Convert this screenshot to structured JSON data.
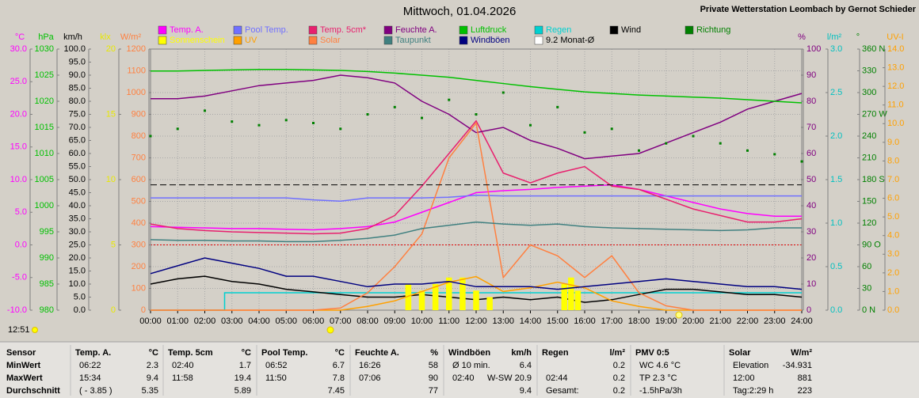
{
  "chart_data": {
    "type": "line",
    "title": "Mittwoch, 01.04.2026",
    "subtitle": "Private Wetterstation Leombach by Gernot Schieder",
    "sun_time": "12:51",
    "xlim": [
      0,
      24
    ],
    "xticks": [
      {
        "value": 0,
        "label": "00:00"
      },
      {
        "value": 1,
        "label": "01:00"
      },
      {
        "value": 2,
        "label": "02:00"
      },
      {
        "value": 3,
        "label": "03:00"
      },
      {
        "value": 4,
        "label": "04:00"
      },
      {
        "value": 5,
        "label": "05:00"
      },
      {
        "value": 6,
        "label": "06:00"
      },
      {
        "value": 7,
        "label": "07:00"
      },
      {
        "value": 8,
        "label": "08:00"
      },
      {
        "value": 9,
        "label": "09:00"
      },
      {
        "value": 10,
        "label": "10:00"
      },
      {
        "value": 11,
        "label": "11:00"
      },
      {
        "value": 12,
        "label": "12:00"
      },
      {
        "value": 13,
        "label": "13:00"
      },
      {
        "value": 14,
        "label": "14:00"
      },
      {
        "value": 15,
        "label": "15:00"
      },
      {
        "value": 16,
        "label": "16:00"
      },
      {
        "value": 17,
        "label": "17:00"
      },
      {
        "value": 18,
        "label": "18:00"
      },
      {
        "value": 19,
        "label": "19:00"
      },
      {
        "value": 20,
        "label": "20:00"
      },
      {
        "value": 21,
        "label": "21:00"
      },
      {
        "value": 22,
        "label": "22:00"
      },
      {
        "value": 23,
        "label": "23:00"
      },
      {
        "value": 24,
        "label": "24:00"
      }
    ],
    "x": [
      0,
      1,
      2,
      3,
      4,
      5,
      6,
      7,
      8,
      9,
      10,
      11,
      12,
      13,
      14,
      15,
      16,
      17,
      18,
      19,
      20,
      21,
      22,
      23,
      24
    ],
    "axes": [
      {
        "label": "°C",
        "color": "#ff00ff",
        "lim": [
          -10,
          30
        ],
        "ticks": [
          {
            "value": -10,
            "label": "-10.0"
          },
          {
            "value": -5,
            "label": "-5.0"
          },
          {
            "value": 0,
            "label": "0.0"
          },
          {
            "value": 5,
            "label": "5.0"
          },
          {
            "value": 10,
            "label": "10.0"
          },
          {
            "value": 15,
            "label": "15.0"
          },
          {
            "value": 20,
            "label": "20.0"
          },
          {
            "value": 25,
            "label": "25.0"
          },
          {
            "value": 30,
            "label": "30.0"
          }
        ]
      },
      {
        "label": "hPa",
        "color": "#00c000",
        "lim": [
          980,
          1030
        ],
        "ticks": [
          980,
          985,
          990,
          995,
          1000,
          1005,
          1010,
          1015,
          1020,
          1025,
          1030
        ]
      },
      {
        "label": "km/h",
        "color": "#000000",
        "lim": [
          0,
          100
        ],
        "ticks": [
          {
            "value": 0,
            "label": "0.0"
          },
          {
            "value": 5,
            "label": "5.0"
          },
          {
            "value": 10,
            "label": "10.0"
          },
          {
            "value": 15,
            "label": "15.0"
          },
          {
            "value": 20,
            "label": "20.0"
          },
          {
            "value": 25,
            "label": "25.0"
          },
          {
            "value": 30,
            "label": "30.0"
          },
          {
            "value": 35,
            "label": "35.0"
          },
          {
            "value": 40,
            "label": "40.0"
          },
          {
            "value": 45,
            "label": "45.0"
          },
          {
            "value": 50,
            "label": "50.0"
          },
          {
            "value": 55,
            "label": "55.0"
          },
          {
            "value": 60,
            "label": "60.0"
          },
          {
            "value": 65,
            "label": "65.0"
          },
          {
            "value": 70,
            "label": "70.0"
          },
          {
            "value": 75,
            "label": "75.0"
          },
          {
            "value": 80,
            "label": "80.0"
          },
          {
            "value": 85,
            "label": "85.0"
          },
          {
            "value": 90,
            "label": "90.0"
          },
          {
            "value": 95,
            "label": "95.0"
          },
          {
            "value": 100,
            "label": "100.0"
          }
        ]
      },
      {
        "label": "klx",
        "color": "#e8e800",
        "lim": [
          0,
          20
        ],
        "ticks": [
          0,
          5,
          10,
          15,
          20
        ]
      },
      {
        "label": "W/m²",
        "color": "#ff8040",
        "lim": [
          0,
          1200
        ],
        "ticks": [
          0,
          100,
          200,
          300,
          400,
          500,
          600,
          700,
          800,
          900,
          1000,
          1100,
          1200
        ],
        "grid": true
      },
      {
        "label": "%",
        "color": "#800080",
        "lim": [
          0,
          100
        ],
        "ticks": [
          0,
          10,
          20,
          30,
          40,
          50,
          60,
          70,
          80,
          90,
          100
        ]
      },
      {
        "label": "l/m²",
        "color": "#00c0c0",
        "lim": [
          0,
          3
        ],
        "ticks": [
          {
            "value": 0,
            "label": "0.0"
          },
          {
            "value": 0.5,
            "label": "0.5"
          },
          {
            "value": 1,
            "label": "1.0"
          },
          {
            "value": 1.5,
            "label": "1.5"
          },
          {
            "value": 2,
            "label": "2.0"
          },
          {
            "value": 2.5,
            "label": "2.5"
          },
          {
            "value": 3,
            "label": "3.0"
          }
        ]
      },
      {
        "label": "°",
        "color": "#008000",
        "lim": [
          0,
          360
        ],
        "ticks": [
          {
            "value": 0,
            "label": "0 N"
          },
          30,
          60,
          {
            "value": 90,
            "label": "90 O"
          },
          120,
          150,
          {
            "value": 180,
            "label": "180 S"
          },
          210,
          240,
          {
            "value": 270,
            "label": "270 W"
          },
          300,
          330,
          {
            "value": 360,
            "label": "360 N"
          }
        ]
      },
      {
        "label": "UV-I",
        "color": "#ffa000",
        "lim": [
          0,
          14
        ],
        "ticks": [
          {
            "value": 0,
            "label": "0.0"
          },
          {
            "value": 1,
            "label": "1.0"
          },
          {
            "value": 2,
            "label": "2.0"
          },
          {
            "value": 3,
            "label": "3.0"
          },
          {
            "value": 4,
            "label": "4.0"
          },
          {
            "value": 5,
            "label": "5.0"
          },
          {
            "value": 6,
            "label": "6.0"
          },
          {
            "value": 7,
            "label": "7.0"
          },
          {
            "value": 8,
            "label": "8.0"
          },
          {
            "value": 9,
            "label": "9.0"
          },
          {
            "value": 10,
            "label": "10.0"
          },
          {
            "value": 11,
            "label": "11.0"
          },
          {
            "value": 12,
            "label": "12.0"
          },
          {
            "value": 13,
            "label": "13.0"
          },
          {
            "value": 14,
            "label": "14.0"
          }
        ]
      }
    ],
    "series": [
      {
        "name": "Temp. A.",
        "color": "#ff00ff",
        "axis": 0,
        "type": "line",
        "values": [
          2.8,
          2.7,
          2.6,
          2.5,
          2.5,
          2.4,
          2.3,
          2.5,
          2.8,
          3.5,
          5.0,
          6.5,
          8.0,
          8.3,
          8.5,
          8.8,
          9.0,
          9.2,
          8.5,
          7.5,
          6.5,
          5.5,
          4.8,
          4.4,
          4.4
        ]
      },
      {
        "name": "Pool Temp.",
        "color": "#7070ff",
        "axis": 0,
        "type": "line",
        "values": [
          7.2,
          7.2,
          7.2,
          7.2,
          7.2,
          7.2,
          6.9,
          6.7,
          7.2,
          7.2,
          7.2,
          7.3,
          7.6,
          7.5,
          7.5,
          7.5,
          7.5,
          7.5,
          7.5,
          7.5,
          7.5,
          7.5,
          7.5,
          7.5,
          7.5
        ]
      },
      {
        "name": "Temp. 5cm*",
        "color": "#e8206e",
        "axis": 0,
        "type": "line",
        "values": [
          3.2,
          2.5,
          2.2,
          2.0,
          1.9,
          1.8,
          1.7,
          1.8,
          2.5,
          4.5,
          9,
          14,
          19,
          11,
          9.5,
          11,
          12,
          9,
          8.5,
          7,
          5.5,
          4.5,
          3.5,
          3.5,
          4.0
        ]
      },
      {
        "name": "Feuchte A.",
        "color": "#800080",
        "axis": 5,
        "type": "line",
        "values": [
          81,
          81,
          82,
          84,
          86,
          87,
          88,
          90,
          89,
          87,
          80,
          75,
          68,
          70,
          65,
          62,
          58,
          59,
          60,
          64,
          68,
          72,
          77,
          80,
          83
        ]
      },
      {
        "name": "Luftdruck",
        "color": "#00c000",
        "axis": 1,
        "type": "line",
        "values": [
          1025.8,
          1025.8,
          1025.9,
          1026.0,
          1026.1,
          1026.1,
          1026.0,
          1025.9,
          1025.7,
          1025.4,
          1025.0,
          1024.6,
          1024.0,
          1023.4,
          1022.8,
          1022.3,
          1021.8,
          1021.5,
          1021.2,
          1021.0,
          1020.8,
          1020.6,
          1020.3,
          1020.0,
          1019.7
        ]
      },
      {
        "name": "Regen",
        "color": "#00d0d0",
        "axis": 6,
        "type": "step",
        "x": [
          0,
          2.73,
          24
        ],
        "values": [
          0,
          0.2,
          0.2
        ]
      },
      {
        "name": "Wind",
        "color": "#000000",
        "axis": 2,
        "type": "line",
        "values": [
          10,
          12,
          13,
          11,
          10,
          8,
          7,
          6,
          5,
          5,
          6,
          5,
          4,
          5,
          4,
          5,
          3,
          4,
          6,
          8,
          8,
          7,
          6,
          6,
          5
        ]
      },
      {
        "name": "Richtung",
        "color": "#008000",
        "axis": 7,
        "type": "scatter",
        "values": [
          240,
          250,
          275,
          260,
          255,
          262,
          258,
          250,
          270,
          280,
          265,
          290,
          270,
          300,
          255,
          280,
          245,
          250,
          220,
          230,
          240,
          230,
          220,
          215,
          205
        ]
      },
      {
        "name": "Sonnenschein",
        "color": "#ffff00",
        "axis": 3,
        "type": "bar",
        "x": [
          9.5,
          10,
          10.5,
          11,
          11.5,
          12,
          12.5,
          15.25,
          15.5,
          15.75
        ],
        "values": [
          2,
          1.5,
          2,
          2.5,
          2.5,
          1.5,
          1,
          2,
          2.5,
          1.5
        ]
      },
      {
        "name": "UV",
        "color": "#ffa000",
        "axis": 8,
        "type": "line",
        "values": [
          0,
          0,
          0,
          0,
          0,
          0,
          0,
          0,
          0.2,
          0.5,
          1.0,
          1.5,
          1.8,
          1.0,
          1.2,
          1.5,
          1.2,
          0.5,
          0.2,
          0,
          0,
          0,
          0,
          0,
          0
        ]
      },
      {
        "name": "Solar",
        "color": "#ff8040",
        "axis": 4,
        "type": "line",
        "values": [
          0,
          0,
          0,
          0,
          0,
          0,
          0,
          10,
          80,
          200,
          350,
          700,
          860,
          150,
          300,
          250,
          150,
          250,
          80,
          20,
          0,
          0,
          0,
          0,
          0
        ]
      },
      {
        "name": "Taupunkt",
        "color": "#408080",
        "axis": 0,
        "type": "line",
        "values": [
          0.8,
          0.7,
          0.7,
          0.6,
          0.6,
          0.5,
          0.5,
          0.7,
          1.0,
          1.5,
          2.5,
          3.0,
          3.5,
          3.2,
          3.0,
          3.2,
          2.8,
          2.6,
          2.5,
          2.4,
          2.3,
          2.2,
          2.3,
          2.6,
          2.6
        ]
      },
      {
        "name": "Windböen",
        "color": "#000080",
        "axis": 2,
        "type": "line",
        "values": [
          14,
          17,
          20,
          18,
          16,
          13,
          13,
          11,
          9,
          10,
          10,
          11,
          9,
          9,
          9,
          8,
          9,
          10,
          11,
          12,
          11,
          10,
          9,
          9,
          8
        ]
      },
      {
        "name": "9.2 Monat-Ø",
        "color": "#000000",
        "axis": 0,
        "type": "hline",
        "value": 9.2
      }
    ]
  },
  "table": {
    "blocks": [
      {
        "header": [
          "Sensor"
        ],
        "rows": [
          [
            "MinWert"
          ],
          [
            "MaxWert"
          ],
          [
            "Durchschnitt"
          ]
        ]
      },
      {
        "header": [
          "Temp. A.",
          "°C"
        ],
        "rows": [
          [
            "06:22",
            "2.3"
          ],
          [
            "15:34",
            "9.4"
          ],
          [
            "( - 3.85 )",
            "5.35"
          ]
        ]
      },
      {
        "header": [
          "Temp. 5cm",
          "°C"
        ],
        "rows": [
          [
            "02:40",
            "1.7"
          ],
          [
            "11:58",
            "19.4"
          ],
          [
            "5.89"
          ]
        ]
      },
      {
        "header": [
          "Pool Temp.",
          "°C"
        ],
        "rows": [
          [
            "06:52",
            "6.7"
          ],
          [
            "11:50",
            "7.8"
          ],
          [
            "7.45"
          ]
        ]
      },
      {
        "header": [
          "Feuchte A.",
          "%"
        ],
        "rows": [
          [
            "16:26",
            "58"
          ],
          [
            "07:06",
            "90"
          ],
          [
            "77"
          ]
        ]
      },
      {
        "header": [
          "Windböen",
          "km/h"
        ],
        "rows": [
          [
            "Ø 10 min.",
            "6.4"
          ],
          [
            "02:40",
            "W-SW 20.9"
          ],
          [
            "9.4"
          ]
        ]
      },
      {
        "header": [
          "Regen",
          "l/m²"
        ],
        "rows": [
          [
            "0.2"
          ],
          [
            "02:44",
            "0.2"
          ],
          [
            "Gesamt:",
            "0.2"
          ]
        ]
      },
      {
        "header": [
          "PMV 0:5"
        ],
        "rows": [
          [
            "WC 4.6 °C"
          ],
          [
            "TP 2.3 °C"
          ],
          [
            "-1.5hPa/3h"
          ]
        ]
      },
      {
        "header": [
          "Solar",
          "W/m²"
        ],
        "rows": [
          [
            "Elevation",
            "-34.931"
          ],
          [
            "12:00",
            "881"
          ],
          [
            "Tag:2:29 h",
            "223"
          ]
        ]
      }
    ]
  }
}
